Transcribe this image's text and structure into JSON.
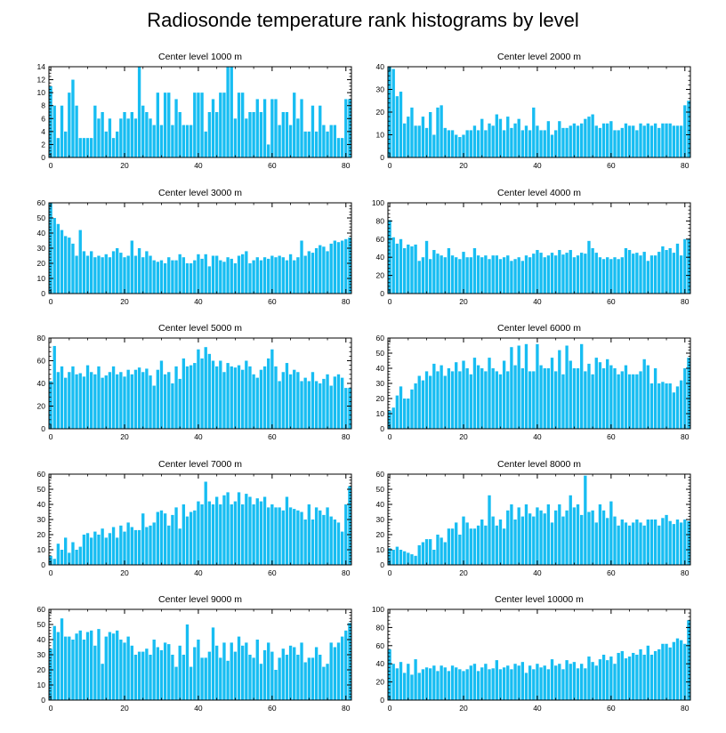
{
  "title": "Radiosonde temperature rank histograms by level",
  "bar_color": "#17bdf2",
  "chart_data": [
    {
      "type": "bar",
      "title": "Center level 1000 m",
      "ylim": [
        0,
        14
      ],
      "yticks": [
        0,
        2,
        4,
        6,
        8,
        10,
        12,
        14
      ],
      "xlim": [
        -0.5,
        81.5
      ],
      "xticks": [
        0,
        20,
        40,
        60,
        80
      ],
      "xlabel": "",
      "ylabel": "",
      "values": [
        11,
        8,
        3,
        8,
        4,
        10,
        12,
        8,
        3,
        3,
        3,
        3,
        8,
        6,
        7,
        4,
        6,
        3,
        4,
        6,
        7,
        6,
        7,
        6,
        14,
        8,
        7,
        6,
        5,
        10,
        5,
        10,
        10,
        5,
        9,
        7,
        5,
        5,
        5,
        10,
        10,
        10,
        4,
        7,
        9,
        7,
        10,
        10,
        14,
        14,
        6,
        10,
        10,
        6,
        7,
        7,
        9,
        7,
        9,
        2,
        9,
        9,
        5,
        7,
        7,
        5,
        10,
        6,
        9,
        4,
        4,
        8,
        4,
        8,
        5,
        4,
        5,
        5,
        3,
        3,
        9,
        9
      ]
    },
    {
      "type": "bar",
      "title": "Center level 2000 m",
      "ylim": [
        0,
        40
      ],
      "yticks": [
        0,
        10,
        20,
        30,
        40
      ],
      "xlim": [
        -0.5,
        81.5
      ],
      "xticks": [
        0,
        20,
        40,
        60,
        80
      ],
      "xlabel": "",
      "ylabel": "",
      "values": [
        40,
        39,
        27,
        29,
        15,
        18,
        22,
        14,
        14,
        18,
        13,
        20,
        10,
        22,
        23,
        13,
        12,
        12,
        10,
        9,
        10,
        12,
        12,
        14,
        12,
        17,
        12,
        15,
        14,
        19,
        17,
        12,
        18,
        13,
        15,
        17,
        12,
        14,
        12,
        22,
        14,
        12,
        12,
        16,
        10,
        12,
        16,
        13,
        13,
        14,
        15,
        14,
        15,
        17,
        18,
        19,
        14,
        13,
        15,
        15,
        16,
        12,
        12,
        13,
        15,
        14,
        14,
        12,
        15,
        14,
        15,
        14,
        15,
        13,
        15,
        15,
        15,
        14,
        14,
        14,
        23,
        25
      ]
    },
    {
      "type": "bar",
      "title": "Center level 3000 m",
      "ylim": [
        0,
        60
      ],
      "yticks": [
        0,
        10,
        20,
        30,
        40,
        50,
        60
      ],
      "xlim": [
        -0.5,
        81.5
      ],
      "xticks": [
        0,
        20,
        40,
        60,
        80
      ],
      "xlabel": "",
      "ylabel": "",
      "values": [
        60,
        50,
        46,
        42,
        38,
        37,
        33,
        25,
        42,
        28,
        25,
        28,
        24,
        25,
        24,
        26,
        24,
        28,
        30,
        27,
        24,
        25,
        35,
        25,
        30,
        24,
        28,
        25,
        22,
        21,
        22,
        20,
        24,
        22,
        22,
        26,
        24,
        20,
        20,
        22,
        26,
        23,
        26,
        18,
        25,
        25,
        22,
        21,
        24,
        23,
        20,
        25,
        26,
        28,
        20,
        22,
        24,
        22,
        24,
        23,
        25,
        24,
        25,
        24,
        22,
        26,
        22,
        24,
        35,
        25,
        28,
        27,
        30,
        32,
        31,
        28,
        33,
        35,
        34,
        35,
        36,
        37
      ]
    },
    {
      "type": "bar",
      "title": "Center level 4000 m",
      "ylim": [
        0,
        100
      ],
      "yticks": [
        0,
        20,
        40,
        60,
        80,
        100
      ],
      "xlim": [
        -0.5,
        81.5
      ],
      "xticks": [
        0,
        20,
        40,
        60,
        80
      ],
      "xlabel": "",
      "ylabel": "",
      "values": [
        81,
        62,
        55,
        60,
        50,
        54,
        52,
        54,
        36,
        40,
        58,
        38,
        48,
        44,
        42,
        40,
        50,
        42,
        40,
        38,
        46,
        40,
        40,
        50,
        42,
        40,
        42,
        38,
        42,
        42,
        38,
        40,
        42,
        36,
        38,
        40,
        36,
        42,
        40,
        44,
        48,
        45,
        40,
        42,
        45,
        42,
        48,
        43,
        45,
        48,
        40,
        42,
        45,
        44,
        58,
        50,
        45,
        40,
        38,
        40,
        38,
        40,
        38,
        40,
        50,
        48,
        44,
        45,
        42,
        46,
        36,
        42,
        42,
        46,
        52,
        48,
        50,
        45,
        55,
        42,
        60,
        60
      ]
    },
    {
      "type": "bar",
      "title": "Center level 5000 m",
      "ylim": [
        0,
        80
      ],
      "yticks": [
        0,
        20,
        40,
        60,
        80
      ],
      "xlim": [
        -0.5,
        81.5
      ],
      "xticks": [
        0,
        20,
        40,
        60,
        80
      ],
      "xlabel": "",
      "ylabel": "",
      "values": [
        42,
        73,
        50,
        55,
        45,
        50,
        55,
        48,
        49,
        46,
        56,
        50,
        48,
        55,
        45,
        47,
        50,
        55,
        48,
        50,
        46,
        52,
        48,
        52,
        54,
        50,
        53,
        47,
        38,
        52,
        60,
        48,
        50,
        40,
        55,
        44,
        62,
        55,
        56,
        58,
        70,
        62,
        72,
        66,
        60,
        55,
        60,
        50,
        58,
        55,
        54,
        56,
        52,
        60,
        55,
        48,
        45,
        52,
        55,
        62,
        70,
        55,
        42,
        50,
        58,
        48,
        52,
        50,
        42,
        45,
        42,
        50,
        42,
        40,
        44,
        48,
        38,
        46,
        48,
        45,
        36,
        36
      ]
    },
    {
      "type": "bar",
      "title": "Center level 6000 m",
      "ylim": [
        0,
        60
      ],
      "yticks": [
        0,
        10,
        20,
        30,
        40,
        50,
        60
      ],
      "xlim": [
        -0.5,
        81.5
      ],
      "xticks": [
        0,
        20,
        40,
        60,
        80
      ],
      "xlabel": "",
      "ylabel": "",
      "values": [
        12,
        14,
        22,
        28,
        20,
        20,
        26,
        30,
        35,
        32,
        38,
        35,
        43,
        38,
        42,
        35,
        40,
        38,
        44,
        38,
        45,
        40,
        36,
        47,
        42,
        40,
        38,
        47,
        40,
        38,
        36,
        45,
        38,
        54,
        42,
        55,
        40,
        56,
        38,
        38,
        56,
        42,
        40,
        40,
        47,
        38,
        52,
        36,
        55,
        45,
        40,
        40,
        56,
        38,
        43,
        36,
        47,
        44,
        40,
        46,
        42,
        40,
        36,
        38,
        42,
        36,
        36,
        36,
        38,
        46,
        42,
        30,
        40,
        30,
        31,
        30,
        30,
        24,
        28,
        32,
        40,
        47
      ]
    },
    {
      "type": "bar",
      "title": "Center level 7000 m",
      "ylim": [
        0,
        60
      ],
      "yticks": [
        0,
        10,
        20,
        30,
        40,
        50,
        60
      ],
      "xlim": [
        -0.5,
        81.5
      ],
      "xticks": [
        0,
        20,
        40,
        60,
        80
      ],
      "xlabel": "",
      "ylabel": "",
      "values": [
        6,
        4,
        14,
        10,
        18,
        8,
        15,
        10,
        12,
        20,
        21,
        18,
        22,
        20,
        24,
        18,
        21,
        25,
        18,
        26,
        22,
        28,
        25,
        23,
        23,
        34,
        25,
        26,
        28,
        35,
        36,
        34,
        26,
        33,
        38,
        24,
        40,
        32,
        35,
        36,
        42,
        40,
        55,
        42,
        40,
        45,
        40,
        46,
        48,
        40,
        42,
        48,
        40,
        47,
        45,
        40,
        44,
        42,
        45,
        38,
        40,
        38,
        38,
        36,
        45,
        38,
        37,
        36,
        35,
        30,
        40,
        30,
        38,
        36,
        33,
        38,
        32,
        30,
        28,
        22,
        40,
        52
      ]
    },
    {
      "type": "bar",
      "title": "Center level 8000 m",
      "ylim": [
        0,
        60
      ],
      "yticks": [
        0,
        10,
        20,
        30,
        40,
        50,
        60
      ],
      "xlim": [
        -0.5,
        81.5
      ],
      "xticks": [
        0,
        20,
        40,
        60,
        80
      ],
      "xlabel": "",
      "ylabel": "",
      "values": [
        11,
        10,
        12,
        10,
        9,
        8,
        7,
        6,
        13,
        15,
        17,
        17,
        10,
        20,
        18,
        15,
        24,
        24,
        28,
        20,
        32,
        28,
        24,
        24,
        26,
        30,
        26,
        46,
        32,
        26,
        30,
        24,
        36,
        40,
        30,
        38,
        32,
        40,
        34,
        32,
        38,
        36,
        34,
        40,
        28,
        36,
        40,
        32,
        36,
        46,
        38,
        40,
        33,
        59,
        35,
        36,
        28,
        40,
        36,
        31,
        42,
        32,
        26,
        30,
        28,
        26,
        28,
        30,
        28,
        26,
        30,
        30,
        30,
        26,
        31,
        33,
        29,
        27,
        30,
        28,
        30,
        29
      ]
    },
    {
      "type": "bar",
      "title": "Center level 9000 m",
      "ylim": [
        0,
        60
      ],
      "yticks": [
        0,
        10,
        20,
        30,
        40,
        50,
        60
      ],
      "xlim": [
        -0.5,
        81.5
      ],
      "xticks": [
        0,
        20,
        40,
        60,
        80
      ],
      "xlabel": "",
      "ylabel": "",
      "values": [
        34,
        49,
        45,
        54,
        42,
        42,
        40,
        44,
        46,
        40,
        45,
        46,
        36,
        47,
        24,
        42,
        45,
        44,
        46,
        40,
        38,
        42,
        36,
        30,
        32,
        32,
        34,
        30,
        40,
        35,
        33,
        38,
        37,
        30,
        22,
        36,
        30,
        50,
        22,
        35,
        40,
        28,
        28,
        32,
        48,
        36,
        28,
        38,
        26,
        38,
        32,
        42,
        36,
        38,
        30,
        28,
        40,
        24,
        33,
        38,
        32,
        20,
        28,
        34,
        30,
        36,
        35,
        30,
        38,
        25,
        28,
        28,
        35,
        30,
        22,
        24,
        38,
        35,
        38,
        42,
        46,
        51
      ]
    },
    {
      "type": "bar",
      "title": "Center level 10000 m",
      "ylim": [
        0,
        100
      ],
      "yticks": [
        0,
        20,
        40,
        60,
        80,
        100
      ],
      "xlim": [
        -0.5,
        81.5
      ],
      "xticks": [
        0,
        20,
        40,
        60,
        80
      ],
      "xlabel": "",
      "ylabel": "",
      "values": [
        56,
        40,
        35,
        42,
        30,
        40,
        28,
        45,
        30,
        34,
        36,
        35,
        38,
        32,
        38,
        36,
        32,
        38,
        36,
        34,
        32,
        34,
        38,
        40,
        32,
        36,
        40,
        34,
        35,
        44,
        34,
        36,
        38,
        34,
        40,
        38,
        42,
        30,
        38,
        34,
        40,
        36,
        38,
        34,
        45,
        38,
        40,
        34,
        44,
        40,
        42,
        35,
        40,
        35,
        48,
        42,
        38,
        45,
        50,
        44,
        48,
        40,
        52,
        54,
        46,
        48,
        52,
        50,
        56,
        50,
        60,
        50,
        54,
        56,
        62,
        62,
        58,
        64,
        68,
        66,
        62,
        88
      ]
    }
  ]
}
